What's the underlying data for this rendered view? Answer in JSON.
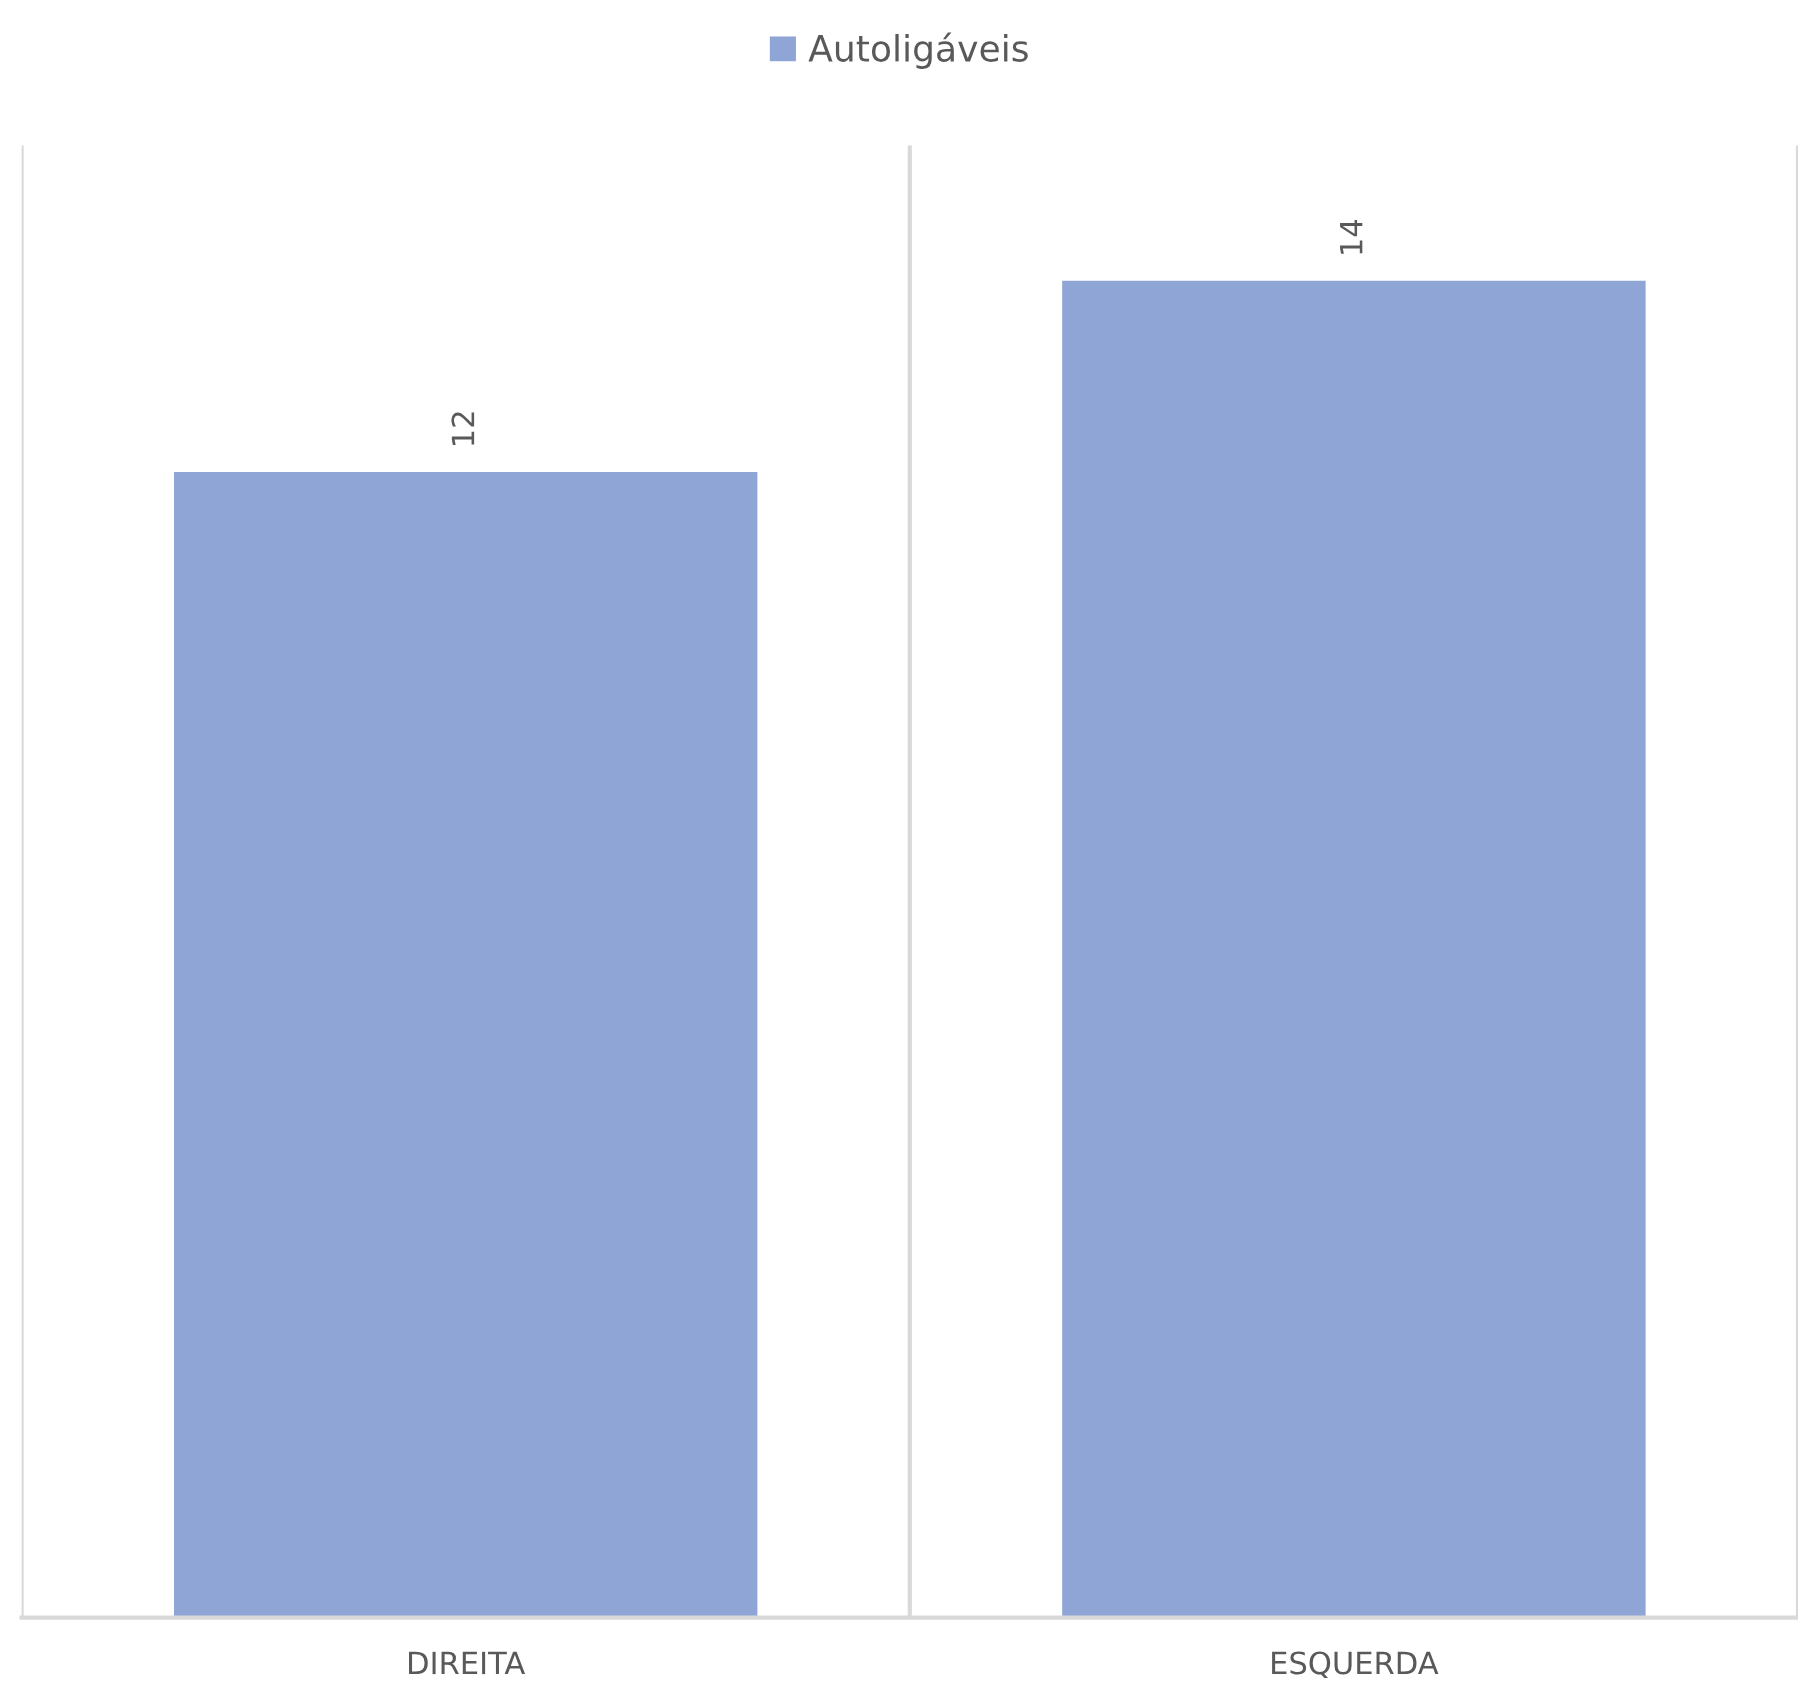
{
  "chart_data": {
    "type": "bar",
    "categories": [
      "DIREITA",
      "ESQUERDA"
    ],
    "series": [
      {
        "name": "Autoligáveis",
        "color": "#8fa5d5",
        "values": [
          12,
          14
        ]
      }
    ],
    "data_labels": true,
    "grid": "x",
    "legend": "top",
    "tick_labels": "x"
  }
}
